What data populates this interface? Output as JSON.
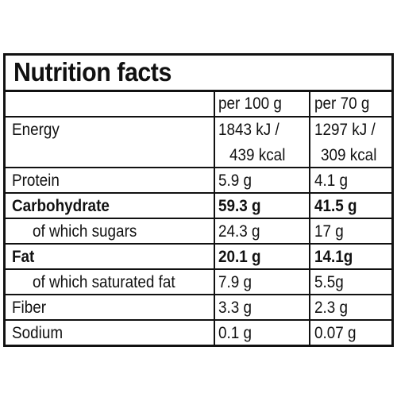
{
  "title": "Nutrition facts",
  "columns": {
    "per_100g": "per 100 g",
    "per_70g": "per 70 g"
  },
  "rows": [
    {
      "name": "Energy",
      "per_100g_line1": "1843 kJ /",
      "per_100g_line2": "439 kcal",
      "per_70g_line1": "1297 kJ /",
      "per_70g_line2": "309 kcal"
    },
    {
      "name": "Protein",
      "per_100g": "5.9 g",
      "per_70g": "4.1 g"
    },
    {
      "name": "Carbohydrate",
      "per_100g": "59.3 g",
      "per_70g": "41.5 g",
      "bold": true
    },
    {
      "name": "of which sugars",
      "per_100g": "24.3 g",
      "per_70g": "17 g"
    },
    {
      "name": "Fat",
      "per_100g": "20.1 g",
      "per_70g": "14.1g",
      "bold": true
    },
    {
      "name": "of which saturated fat",
      "per_100g": "7.9 g",
      "per_70g": "5.5g"
    },
    {
      "name": "Fiber",
      "per_100g": "3.3 g",
      "per_70g": "2.3 g"
    },
    {
      "name": "Sodium",
      "per_100g": "0.1 g",
      "per_70g": "0.07 g"
    }
  ]
}
